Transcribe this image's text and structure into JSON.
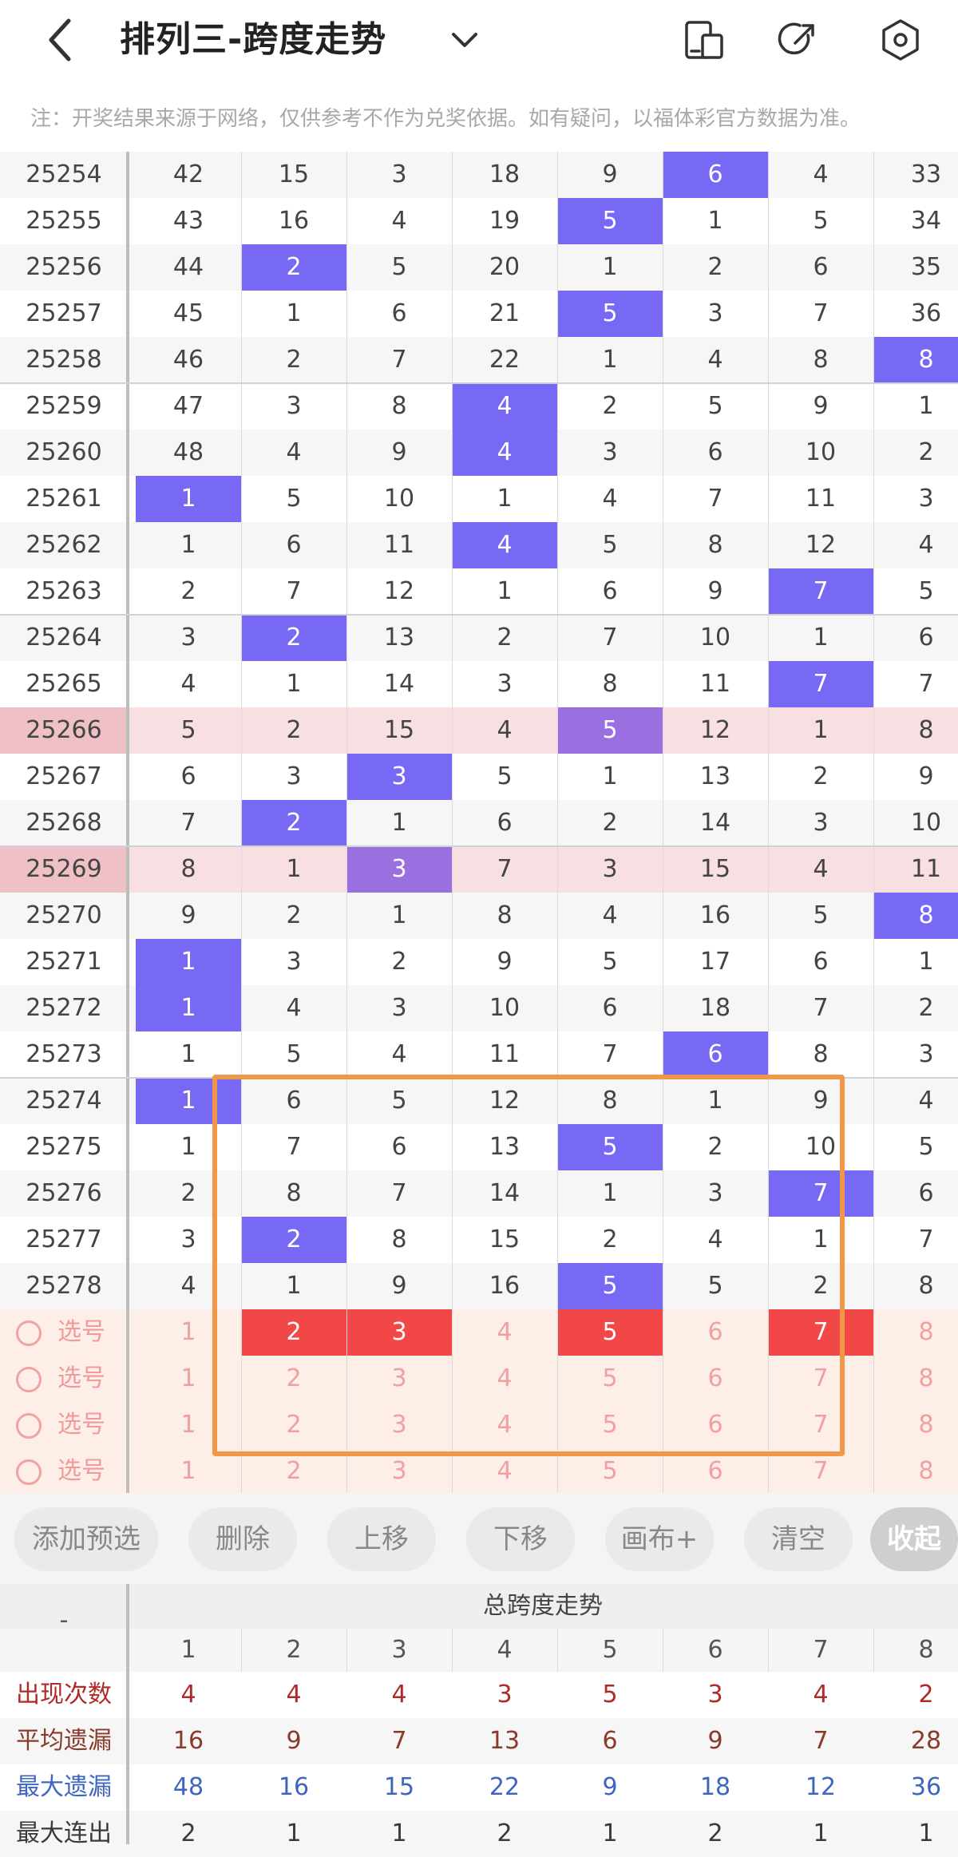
{
  "header": {
    "title": "排列三-跨度走势",
    "back_icon": "chevron-left-icon",
    "dropdown_icon": "chevron-down-icon",
    "icons": [
      "phone-sidebar-icon",
      "share-icon",
      "settings-hexagon-icon"
    ]
  },
  "notice": "注：开奖结果来源于网络，仅供参考不作为兑奖依据。如有疑问，以福体彩官方数据为准。",
  "colors": {
    "hit": "#7869f5",
    "hit_highlight": "#9a70e0",
    "highlight_row": "#f8dfe2",
    "highlight_issue": "#efc1c7",
    "alt_row": "#f6f6f6",
    "select_bg": "#fdeee8",
    "select_red": "#f24747",
    "frame": "#f0974a"
  },
  "trend": {
    "rows": [
      {
        "issue": "25254",
        "values": [
          "42",
          "15",
          "3",
          "18",
          "9",
          "6",
          "4",
          "33"
        ],
        "hit": 6
      },
      {
        "issue": "25255",
        "values": [
          "43",
          "16",
          "4",
          "19",
          "5",
          "1",
          "5",
          "34"
        ],
        "hit": 5
      },
      {
        "issue": "25256",
        "values": [
          "44",
          "2",
          "5",
          "20",
          "1",
          "2",
          "6",
          "35"
        ],
        "hit": 2
      },
      {
        "issue": "25257",
        "values": [
          "45",
          "1",
          "6",
          "21",
          "5",
          "3",
          "7",
          "36"
        ],
        "hit": 5
      },
      {
        "issue": "25258",
        "values": [
          "46",
          "2",
          "7",
          "22",
          "1",
          "4",
          "8",
          "8"
        ],
        "hit": 8
      },
      {
        "issue": "25259",
        "values": [
          "47",
          "3",
          "8",
          "4",
          "2",
          "5",
          "9",
          "1"
        ],
        "hit": 4
      },
      {
        "issue": "25260",
        "values": [
          "48",
          "4",
          "9",
          "4",
          "3",
          "6",
          "10",
          "2"
        ],
        "hit": 4
      },
      {
        "issue": "25261",
        "values": [
          "1",
          "5",
          "10",
          "1",
          "4",
          "7",
          "11",
          "3"
        ],
        "hit": 1
      },
      {
        "issue": "25262",
        "values": [
          "1",
          "6",
          "11",
          "4",
          "5",
          "8",
          "12",
          "4"
        ],
        "hit": 4
      },
      {
        "issue": "25263",
        "values": [
          "2",
          "7",
          "12",
          "1",
          "6",
          "9",
          "7",
          "5"
        ],
        "hit": 7
      },
      {
        "issue": "25264",
        "values": [
          "3",
          "2",
          "13",
          "2",
          "7",
          "10",
          "1",
          "6"
        ],
        "hit": 2
      },
      {
        "issue": "25265",
        "values": [
          "4",
          "1",
          "14",
          "3",
          "8",
          "11",
          "7",
          "7"
        ],
        "hit": 7
      },
      {
        "issue": "25266",
        "values": [
          "5",
          "2",
          "15",
          "4",
          "5",
          "12",
          "1",
          "8"
        ],
        "hit": 5,
        "highlight": true
      },
      {
        "issue": "25267",
        "values": [
          "6",
          "3",
          "3",
          "5",
          "1",
          "13",
          "2",
          "9"
        ],
        "hit": 3
      },
      {
        "issue": "25268",
        "values": [
          "7",
          "2",
          "1",
          "6",
          "2",
          "14",
          "3",
          "10"
        ],
        "hit": 2
      },
      {
        "issue": "25269",
        "values": [
          "8",
          "1",
          "3",
          "7",
          "3",
          "15",
          "4",
          "11"
        ],
        "hit": 3,
        "highlight": true
      },
      {
        "issue": "25270",
        "values": [
          "9",
          "2",
          "1",
          "8",
          "4",
          "16",
          "5",
          "8"
        ],
        "hit": 8
      },
      {
        "issue": "25271",
        "values": [
          "1",
          "3",
          "2",
          "9",
          "5",
          "17",
          "6",
          "1"
        ],
        "hit": 1
      },
      {
        "issue": "25272",
        "values": [
          "1",
          "4",
          "3",
          "10",
          "6",
          "18",
          "7",
          "2"
        ],
        "hit": 1
      },
      {
        "issue": "25273",
        "values": [
          "1",
          "5",
          "4",
          "11",
          "7",
          "6",
          "8",
          "3"
        ],
        "hit": 6
      },
      {
        "issue": "25274",
        "values": [
          "1",
          "6",
          "5",
          "12",
          "8",
          "1",
          "9",
          "4"
        ],
        "hit": 1
      },
      {
        "issue": "25275",
        "values": [
          "1",
          "7",
          "6",
          "13",
          "5",
          "2",
          "10",
          "5"
        ],
        "hit": 5
      },
      {
        "issue": "25276",
        "values": [
          "2",
          "8",
          "7",
          "14",
          "1",
          "3",
          "7",
          "6"
        ],
        "hit": 7
      },
      {
        "issue": "25277",
        "values": [
          "3",
          "2",
          "8",
          "15",
          "2",
          "4",
          "1",
          "7"
        ],
        "hit": 2
      },
      {
        "issue": "25278",
        "values": [
          "4",
          "1",
          "9",
          "16",
          "5",
          "5",
          "2",
          "8"
        ],
        "hit": 5
      }
    ],
    "select_rows": [
      {
        "label": "选号",
        "values": [
          "1",
          "2",
          "3",
          "4",
          "5",
          "6",
          "7",
          "8"
        ],
        "selected": [
          2,
          3,
          5,
          7
        ]
      },
      {
        "label": "选号",
        "values": [
          "1",
          "2",
          "3",
          "4",
          "5",
          "6",
          "7",
          "8"
        ],
        "selected": []
      },
      {
        "label": "选号",
        "values": [
          "1",
          "2",
          "3",
          "4",
          "5",
          "6",
          "7",
          "8"
        ],
        "selected": []
      },
      {
        "label": "选号",
        "values": [
          "1",
          "2",
          "3",
          "4",
          "5",
          "6",
          "7",
          "8"
        ],
        "selected": []
      }
    ]
  },
  "actions": {
    "add": "添加预选",
    "delete": "删除",
    "move_up": "上移",
    "move_down": "下移",
    "canvas": "画布+",
    "clear": "清空",
    "collapse": "收起"
  },
  "stats": {
    "corner": "-",
    "header": "总跨度走势",
    "columns": [
      "1",
      "2",
      "3",
      "4",
      "5",
      "6",
      "7",
      "8"
    ],
    "rows": [
      {
        "label": "出现次数",
        "values": [
          "4",
          "4",
          "4",
          "3",
          "5",
          "3",
          "4",
          "2"
        ],
        "color": "#b02a2a"
      },
      {
        "label": "平均遗漏",
        "values": [
          "16",
          "9",
          "7",
          "13",
          "6",
          "9",
          "7",
          "28"
        ],
        "color": "#8a3a2a"
      },
      {
        "label": "最大遗漏",
        "values": [
          "48",
          "16",
          "15",
          "22",
          "9",
          "18",
          "12",
          "36"
        ],
        "color": "#3e66c0"
      },
      {
        "label": "最大连出",
        "values": [
          "2",
          "1",
          "1",
          "2",
          "1",
          "2",
          "1",
          "1"
        ],
        "color": "#3a3a3a"
      }
    ]
  }
}
